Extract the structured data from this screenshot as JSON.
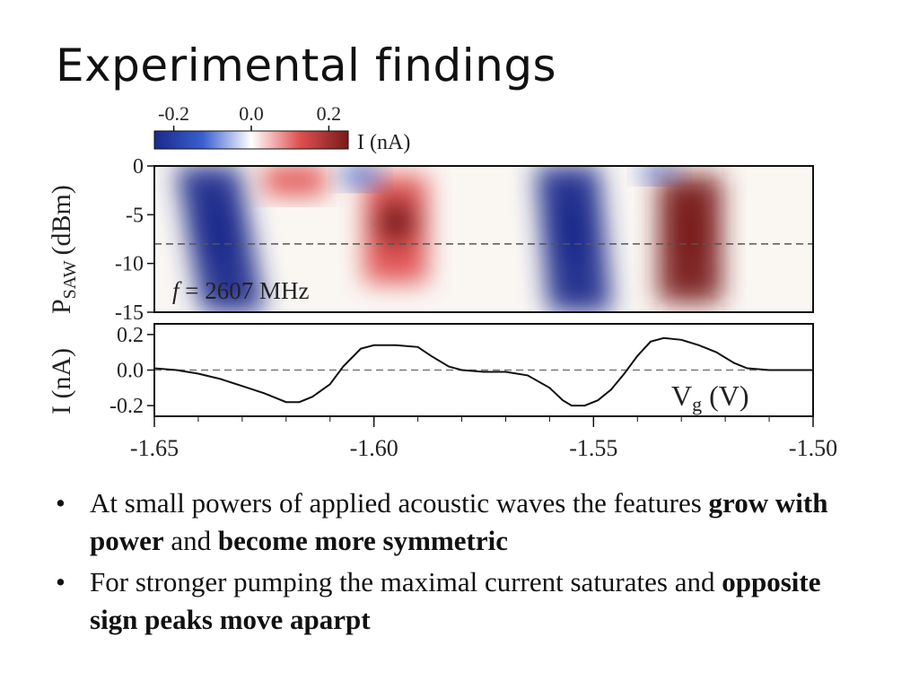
{
  "slide": {
    "title": "Experimental findings"
  },
  "bullets": [
    {
      "parts": [
        {
          "text": "At small powers of applied acoustic waves the features ",
          "bold": false
        },
        {
          "text": "grow with power",
          "bold": true
        },
        {
          "text": " and ",
          "bold": false
        },
        {
          "text": "become more symmetric",
          "bold": true
        }
      ]
    },
    {
      "parts": [
        {
          "text": "For stronger pumping the maximal current saturates and ",
          "bold": false
        },
        {
          "text": "opposite sign peaks move aparpt",
          "bold": true
        }
      ]
    }
  ],
  "bullet_symbol": "•",
  "chart_data": [
    {
      "type": "heatmap",
      "ylabel_main": "P",
      "ylabel_sub": "SAW",
      "ylabel_unit": "(dBm)",
      "annotation": "f = 2607 MHz",
      "annotation_f": "f",
      "annotation_rest": " = 2607 MHz",
      "xlim": [
        -1.65,
        -1.5
      ],
      "ylim": [
        -15,
        0
      ],
      "yticks": [
        "0",
        "-5",
        "-10",
        "-15"
      ],
      "ytick_values": [
        0,
        -5,
        -10,
        -15
      ],
      "dashed_line_y": -8,
      "colorbar": {
        "label": "I (nA)",
        "range": [
          -0.25,
          0.25
        ],
        "ticks": [
          "-0.2",
          "0.0",
          "0.2"
        ],
        "tick_values": [
          -0.2,
          0.0,
          0.2
        ],
        "colors": [
          "#1a2a8c",
          "#3a5fd0",
          "#ffffff",
          "#e05050",
          "#7a1a1a"
        ]
      },
      "features": [
        {
          "vg": -1.638,
          "p_top": 0,
          "p_bottom": -15,
          "value": -0.2,
          "slant": 0.006
        },
        {
          "vg": -1.595,
          "p_top": -1,
          "p_bottom": -12,
          "value": 0.2,
          "slant": 0.0
        },
        {
          "vg": -1.556,
          "p_top": 0,
          "p_bottom": -15,
          "value": -0.22,
          "slant": 0.003
        },
        {
          "vg": -1.528,
          "p_top": -1,
          "p_bottom": -14,
          "value": 0.25,
          "slant": 0.0
        },
        {
          "vg": -1.618,
          "p_top": 0,
          "p_bottom": -3,
          "value": 0.15,
          "slant": 0.0
        },
        {
          "vg": -1.603,
          "p_top": 0,
          "p_bottom": -2,
          "value": -0.08,
          "slant": 0.0
        },
        {
          "vg": -1.535,
          "p_top": 0,
          "p_bottom": -1.5,
          "value": -0.08,
          "slant": 0.0
        }
      ],
      "colors": {
        "frame": "#111111",
        "dashed": "#555555"
      }
    },
    {
      "type": "line",
      "ylabel": "I (nA)",
      "xlabel": "Vg (V)",
      "xlabel_main": "V",
      "xlabel_sub": "g",
      "xlabel_unit": " (V)",
      "xlim": [
        -1.65,
        -1.5
      ],
      "ylim": [
        -0.26,
        0.26
      ],
      "yticks": [
        "0.2",
        "0.0",
        "-0.2"
      ],
      "ytick_values": [
        0.2,
        0.0,
        -0.2
      ],
      "xticks": [
        "-1.65",
        "-1.60",
        "-1.55",
        "-1.50"
      ],
      "xtick_values": [
        -1.65,
        -1.6,
        -1.55,
        -1.5
      ],
      "dashed_line_y": 0.0,
      "series": [
        {
          "x": [
            -1.65,
            -1.645,
            -1.64,
            -1.635,
            -1.63,
            -1.625,
            -1.62,
            -1.617,
            -1.614,
            -1.61,
            -1.607,
            -1.603,
            -1.6,
            -1.595,
            -1.59,
            -1.587,
            -1.583,
            -1.58,
            -1.575,
            -1.57,
            -1.565,
            -1.56,
            -1.557,
            -1.555,
            -1.552,
            -1.549,
            -1.546,
            -1.543,
            -1.54,
            -1.537,
            -1.534,
            -1.53,
            -1.526,
            -1.522,
            -1.518,
            -1.515,
            -1.51,
            -1.505,
            -1.5
          ],
          "y": [
            0.01,
            0.0,
            -0.02,
            -0.05,
            -0.09,
            -0.13,
            -0.18,
            -0.18,
            -0.15,
            -0.08,
            0.02,
            0.12,
            0.14,
            0.14,
            0.13,
            0.08,
            0.02,
            0.0,
            -0.01,
            -0.01,
            -0.03,
            -0.1,
            -0.17,
            -0.2,
            -0.2,
            -0.17,
            -0.11,
            -0.02,
            0.08,
            0.16,
            0.18,
            0.17,
            0.14,
            0.1,
            0.04,
            0.01,
            0.0,
            0.0,
            0.0
          ]
        }
      ],
      "colors": {
        "line": "#111111",
        "dashed": "#777777"
      }
    }
  ]
}
